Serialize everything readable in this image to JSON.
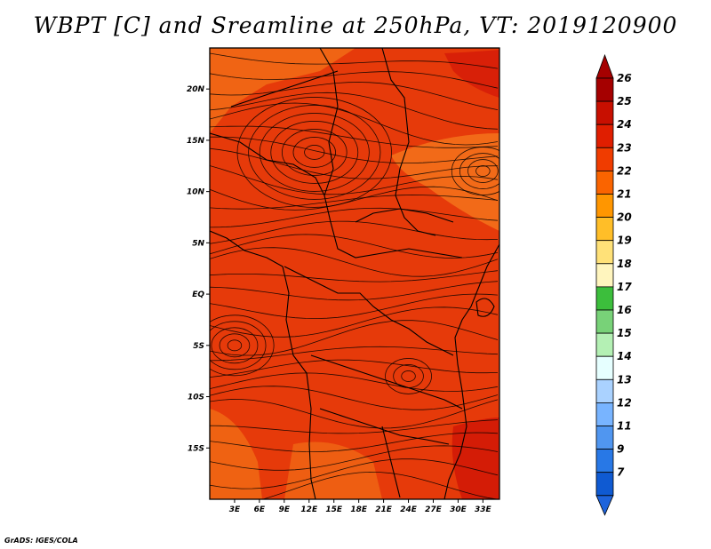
{
  "title": "WBPT [C] and Sreamline at 250hPa, VT: 2019120900",
  "credit": "GrADS: IGES/COLA",
  "map": {
    "lon_range": [
      0,
      35
    ],
    "lat_range": [
      -20,
      24
    ],
    "lat_ticks": [
      {
        "value": 20,
        "label": "20N"
      },
      {
        "value": 15,
        "label": "15N"
      },
      {
        "value": 10,
        "label": "10N"
      },
      {
        "value": 5,
        "label": "5N"
      },
      {
        "value": 0,
        "label": "EQ"
      },
      {
        "value": -5,
        "label": "5S"
      },
      {
        "value": -10,
        "label": "10S"
      },
      {
        "value": -15,
        "label": "15S"
      }
    ],
    "lon_ticks": [
      {
        "value": 3,
        "label": "3E"
      },
      {
        "value": 6,
        "label": "6E"
      },
      {
        "value": 9,
        "label": "9E"
      },
      {
        "value": 12,
        "label": "12E"
      },
      {
        "value": 15,
        "label": "15E"
      },
      {
        "value": 18,
        "label": "18E"
      },
      {
        "value": 21,
        "label": "21E"
      },
      {
        "value": 24,
        "label": "24E"
      },
      {
        "value": 27,
        "label": "27E"
      },
      {
        "value": 30,
        "label": "30E"
      },
      {
        "value": 33,
        "label": "33E"
      }
    ]
  },
  "colorbar": {
    "levels": [
      {
        "label": "26",
        "color": "#a50000"
      },
      {
        "label": "25",
        "color": "#c80f00"
      },
      {
        "label": "24",
        "color": "#e01e00"
      },
      {
        "label": "23",
        "color": "#f03c00"
      },
      {
        "label": "22",
        "color": "#fa6400"
      },
      {
        "label": "21",
        "color": "#ff9600"
      },
      {
        "label": "20",
        "color": "#ffbe28"
      },
      {
        "label": "19",
        "color": "#ffe178"
      },
      {
        "label": "18",
        "color": "#fff5be"
      },
      {
        "label": "17",
        "color": "#3cbe3c"
      },
      {
        "label": "16",
        "color": "#78d278"
      },
      {
        "label": "15",
        "color": "#b4f0b4"
      },
      {
        "label": "14",
        "color": "#e6ffff"
      },
      {
        "label": "13",
        "color": "#aad2ff"
      },
      {
        "label": "12",
        "color": "#78b4ff"
      },
      {
        "label": "11",
        "color": "#5096f0"
      },
      {
        "label": "9",
        "color": "#2878e6"
      },
      {
        "label": "7",
        "color": "#0f5ad2"
      }
    ],
    "bottom_color": "#1e64dc"
  }
}
